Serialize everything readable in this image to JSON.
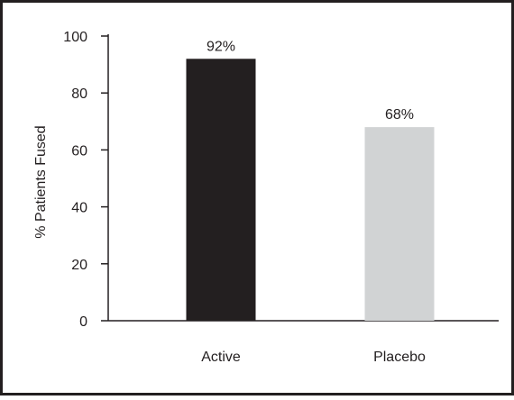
{
  "chart_data": {
    "type": "bar",
    "title": "",
    "xlabel": "",
    "ylabel": "% Patients Fused",
    "ylim": [
      0,
      100
    ],
    "yticks": [
      0,
      20,
      40,
      60,
      80,
      100
    ],
    "categories": [
      "Active",
      "Placebo"
    ],
    "values": [
      92,
      68
    ],
    "data_labels": [
      "92%",
      "68%"
    ],
    "bar_colors": [
      "#231f20",
      "#d1d3d4"
    ],
    "grid": false,
    "legend": "none"
  },
  "colors": {
    "border": "#231f20",
    "axis": "#231f20",
    "text": "#231f20"
  }
}
